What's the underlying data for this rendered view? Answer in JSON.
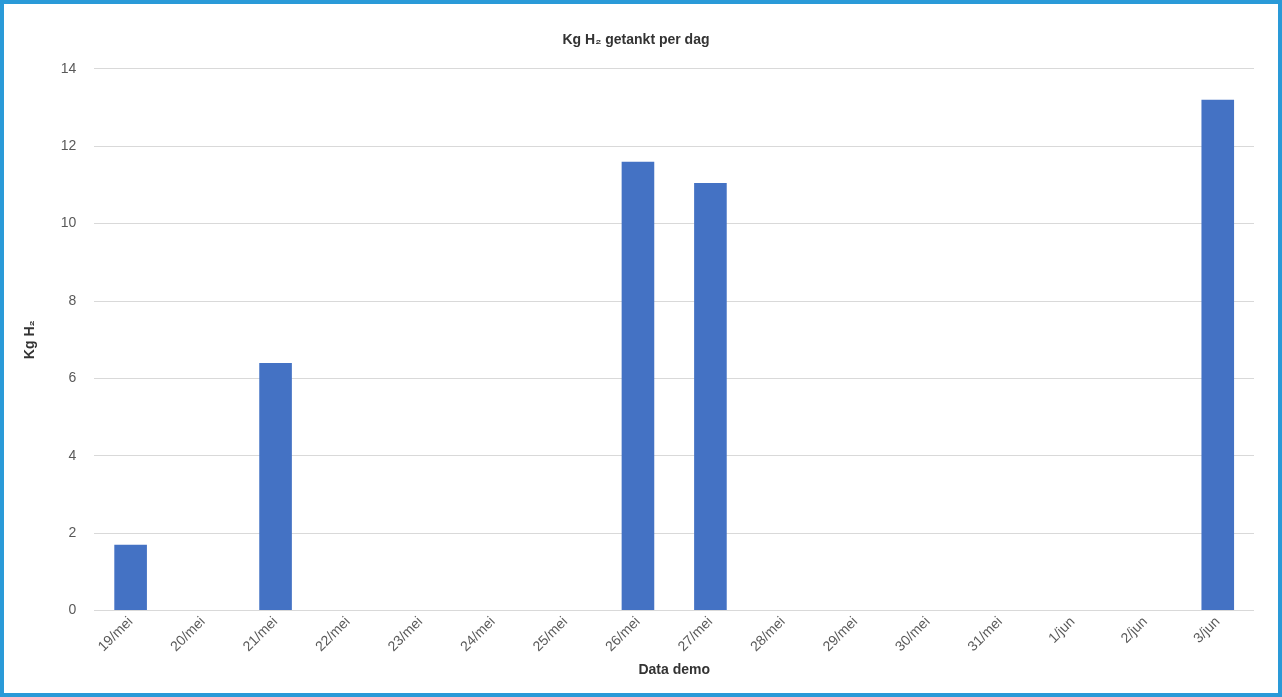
{
  "chart_data": {
    "type": "bar",
    "title": "Kg H₂ getankt per dag",
    "xlabel": "Data demo",
    "ylabel": "Kg H₂",
    "categories": [
      "19/mei",
      "20/mei",
      "21/mei",
      "22/mei",
      "23/mei",
      "24/mei",
      "25/mei",
      "26/mei",
      "27/mei",
      "28/mei",
      "29/mei",
      "30/mei",
      "31/mei",
      "1/jun",
      "2/jun",
      "3/jun"
    ],
    "values": [
      1.7,
      0,
      6.4,
      0,
      0,
      0,
      0,
      11.6,
      11.05,
      0,
      0,
      0,
      0,
      0,
      0,
      13.2
    ],
    "color": "#4472c4",
    "ylim": [
      0,
      14
    ],
    "yticks": [
      0,
      2,
      4,
      6,
      8,
      10,
      12,
      14
    ],
    "grid": "y",
    "legend": false
  }
}
